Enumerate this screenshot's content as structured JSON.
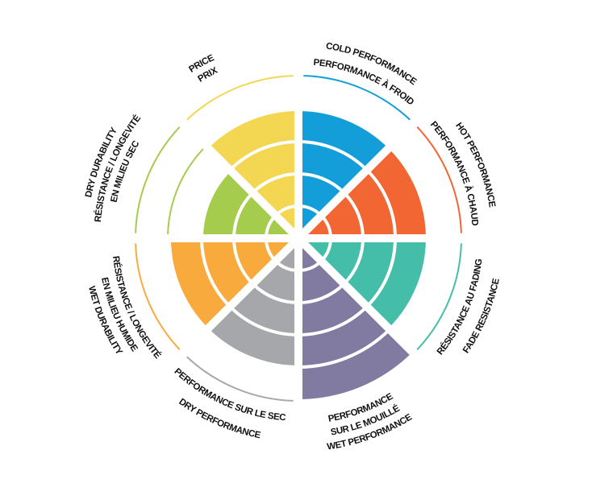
{
  "chart_data": {
    "type": "bar",
    "layout": "polar",
    "ylim": [
      0,
      5
    ],
    "grid": true,
    "legend": "none",
    "categories": [
      {
        "label_lines": [
          "COLD PERFORMANCE",
          "PERFORMANCE À FROID"
        ],
        "value": 4,
        "color": "#139ed9"
      },
      {
        "label_lines": [
          "HOT PERFORMANCE",
          "PERFORMANCE À CHAUD"
        ],
        "value": 4,
        "color": "#f26634"
      },
      {
        "label_lines": [
          "RÉSISTANCE AU FADING",
          "FADE RESISTANCE"
        ],
        "value": 4,
        "color": "#44bea9"
      },
      {
        "label_lines": [
          "PERFORMANCE",
          "SUR LE MOUILLÉ",
          "WET PERFORMANCE"
        ],
        "value": 5,
        "color": "#817aa1"
      },
      {
        "label_lines": [
          "PERFORMANCE SUR LE SEC",
          "DRY PERFORMANCE"
        ],
        "value": 4,
        "color": "#a6a7aa"
      },
      {
        "label_lines": [
          "RÉSISTANCE / LONGEVITÉ",
          "EN MILIEU HUMIDE",
          "WET DURABILITY"
        ],
        "value": 4,
        "color": "#f9aa3c"
      },
      {
        "label_lines": [
          "DRY DURABILITY",
          "RÉSISTANCE / LONGEVITÉ",
          "EN MILIEU SEC"
        ],
        "value": 3,
        "color": "#a5cc4d"
      },
      {
        "label_lines": [
          "PRICE",
          "PRIX"
        ],
        "value": 4,
        "color": "#f3d752"
      }
    ]
  }
}
